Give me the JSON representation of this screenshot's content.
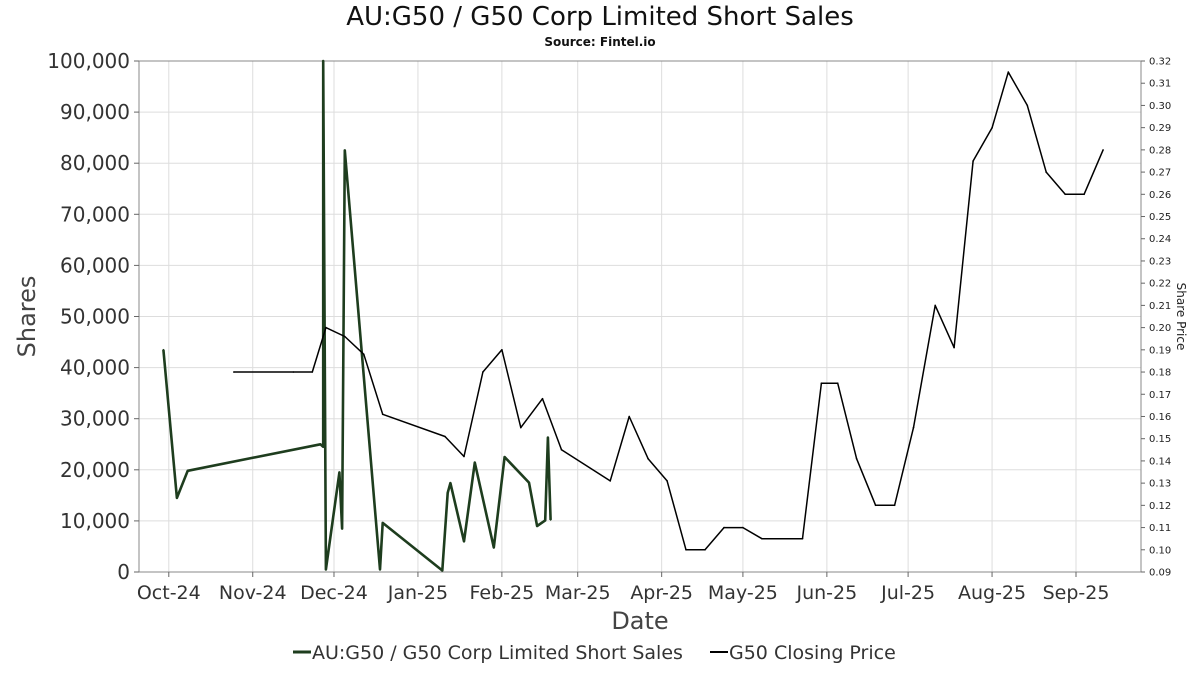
{
  "title": "AU:G50 / G50 Corp Limited Short Sales",
  "subtitle": "Source: Fintel.io",
  "colors": {
    "short": "#1e3d1e",
    "price": "#000000",
    "grid": "#dddddd",
    "frame": "#888888"
  },
  "chart_data": {
    "type": "line",
    "title": "AU:G50 / G50 Corp Limited Short Sales",
    "subtitle": "Source: Fintel.io",
    "xlabel": "Date",
    "ylabel": "Shares",
    "y2label": "Share Price",
    "ylim": [
      0,
      100000
    ],
    "y2lim": [
      0.09,
      0.32
    ],
    "xlim": [
      "2024-09-20",
      "2025-09-25"
    ],
    "grid": true,
    "legend_position": "bottom",
    "x_ticks": [
      {
        "label": "Oct-24",
        "date": "2024-10-01"
      },
      {
        "label": "Nov-24",
        "date": "2024-11-01"
      },
      {
        "label": "Dec-24",
        "date": "2024-12-01"
      },
      {
        "label": "Jan-25",
        "date": "2025-01-01"
      },
      {
        "label": "Feb-25",
        "date": "2025-02-01"
      },
      {
        "label": "Mar-25",
        "date": "2025-03-01"
      },
      {
        "label": "Apr-25",
        "date": "2025-04-01"
      },
      {
        "label": "May-25",
        "date": "2025-05-01"
      },
      {
        "label": "Jun-25",
        "date": "2025-06-01"
      },
      {
        "label": "Jul-25",
        "date": "2025-07-01"
      },
      {
        "label": "Aug-25",
        "date": "2025-08-01"
      },
      {
        "label": "Sep-25",
        "date": "2025-09-01"
      }
    ],
    "y_ticks": [
      "0",
      "10,000",
      "20,000",
      "30,000",
      "40,000",
      "50,000",
      "60,000",
      "70,000",
      "80,000",
      "90,000",
      "100,000"
    ],
    "y2_ticks": [
      "0.09",
      "0.10",
      "0.11",
      "0.12",
      "0.13",
      "0.14",
      "0.15",
      "0.16",
      "0.17",
      "0.18",
      "0.19",
      "0.20",
      "0.21",
      "0.22",
      "0.23",
      "0.24",
      "0.25",
      "0.26",
      "0.27",
      "0.28",
      "0.29",
      "0.30",
      "0.31",
      "0.32"
    ],
    "series": [
      {
        "name": "AU:G50 / G50 Corp Limited Short Sales",
        "axis": "left",
        "points": [
          [
            "2024-09-29",
            43500
          ],
          [
            "2024-10-04",
            14500
          ],
          [
            "2024-10-08",
            19800
          ],
          [
            "2024-11-26",
            25000
          ],
          [
            "2024-11-27",
            24500
          ],
          [
            "2024-11-27",
            100000
          ],
          [
            "2024-11-28",
            500
          ],
          [
            "2024-12-03",
            19500
          ],
          [
            "2024-12-04",
            8500
          ],
          [
            "2024-12-05",
            82500
          ],
          [
            "2024-12-18",
            500
          ],
          [
            "2024-12-19",
            9600
          ],
          [
            "2025-01-10",
            300
          ],
          [
            "2025-01-12",
            15500
          ],
          [
            "2025-01-13",
            17400
          ],
          [
            "2025-01-18",
            6000
          ],
          [
            "2025-01-22",
            21400
          ],
          [
            "2025-01-29",
            4800
          ],
          [
            "2025-02-02",
            22500
          ],
          [
            "2025-02-11",
            17500
          ],
          [
            "2025-02-14",
            9000
          ],
          [
            "2025-02-17",
            10100
          ],
          [
            "2025-02-18",
            26300
          ],
          [
            "2025-02-19",
            10200
          ]
        ]
      },
      {
        "name": "G50 Closing Price",
        "axis": "right",
        "points": [
          [
            "2024-10-25",
            0.18
          ],
          [
            "2024-11-16",
            0.18
          ],
          [
            "2024-11-23",
            0.18
          ],
          [
            "2024-11-28",
            0.2
          ],
          [
            "2024-12-05",
            0.196
          ],
          [
            "2024-12-12",
            0.188
          ],
          [
            "2024-12-19",
            0.161
          ],
          [
            "2025-01-11",
            0.151
          ],
          [
            "2025-01-18",
            0.142
          ],
          [
            "2025-01-25",
            0.18
          ],
          [
            "2025-02-01",
            0.19
          ],
          [
            "2025-02-08",
            0.155
          ],
          [
            "2025-02-16",
            0.168
          ],
          [
            "2025-02-23",
            0.145
          ],
          [
            "2025-03-13",
            0.131
          ],
          [
            "2025-03-20",
            0.16
          ],
          [
            "2025-03-27",
            0.141
          ],
          [
            "2025-04-03",
            0.131
          ],
          [
            "2025-04-10",
            0.1
          ],
          [
            "2025-04-17",
            0.1
          ],
          [
            "2025-04-24",
            0.11
          ],
          [
            "2025-05-01",
            0.11
          ],
          [
            "2025-05-08",
            0.105
          ],
          [
            "2025-05-23",
            0.105
          ],
          [
            "2025-05-30",
            0.175
          ],
          [
            "2025-06-05",
            0.175
          ],
          [
            "2025-06-12",
            0.141
          ],
          [
            "2025-06-19",
            0.12
          ],
          [
            "2025-06-26",
            0.12
          ],
          [
            "2025-07-03",
            0.155
          ],
          [
            "2025-07-11",
            0.21
          ],
          [
            "2025-07-18",
            0.191
          ],
          [
            "2025-07-25",
            0.275
          ],
          [
            "2025-08-01",
            0.29
          ],
          [
            "2025-08-07",
            0.315
          ],
          [
            "2025-08-14",
            0.3
          ],
          [
            "2025-08-21",
            0.27
          ],
          [
            "2025-08-28",
            0.26
          ],
          [
            "2025-09-04",
            0.26
          ],
          [
            "2025-09-11",
            0.28
          ]
        ]
      }
    ]
  }
}
